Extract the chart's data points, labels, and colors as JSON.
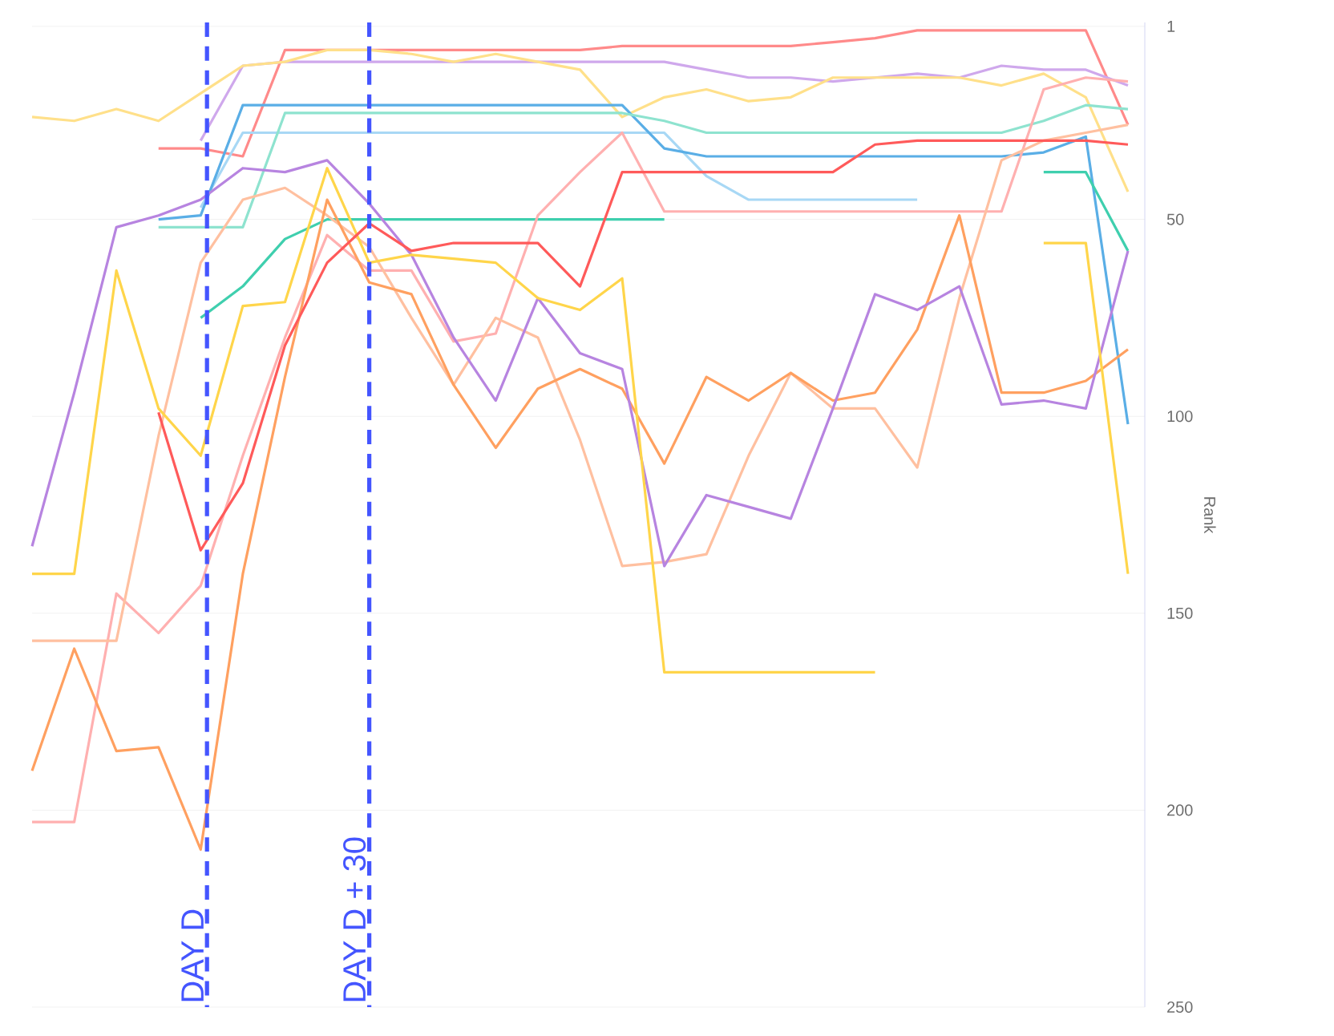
{
  "chart_data": {
    "type": "line",
    "ylabel": "Rank",
    "categories": [
      null,
      null,
      null,
      null,
      null,
      null,
      null,
      null,
      null,
      null,
      null,
      null,
      null,
      null,
      null,
      null,
      null,
      null,
      null,
      null,
      null,
      null,
      null,
      null,
      null,
      null,
      null
    ],
    "ylim": [
      250,
      0
    ],
    "yticks": [
      1,
      50,
      100,
      150,
      200,
      250
    ],
    "grid": "y",
    "tick_labels": "y",
    "marker": "none",
    "line_style": "solid",
    "series": [
      {
        "color": "#ff8a8a",
        "values": [
          null,
          null,
          null,
          32,
          32,
          34,
          7,
          7,
          7,
          7,
          7,
          7,
          7,
          7,
          6,
          6,
          6,
          6,
          6,
          5,
          4,
          2,
          2,
          2,
          2,
          2,
          26
        ]
      },
      {
        "color": "#cfa8ec",
        "values": [
          null,
          null,
          null,
          null,
          30,
          11,
          10,
          10,
          10,
          10,
          10,
          10,
          10,
          10,
          10,
          10,
          12,
          14,
          14,
          15,
          14,
          13,
          14,
          11,
          12,
          12,
          16
        ]
      },
      {
        "color": "#ffe08a",
        "values": [
          24,
          25,
          22,
          25,
          18,
          11,
          10,
          7,
          7,
          8,
          10,
          8,
          10,
          12,
          24,
          19,
          17,
          20,
          19,
          14,
          14,
          14,
          14,
          16,
          13,
          19,
          43
        ]
      },
      {
        "color": "#a8d8f5",
        "values": [
          null,
          null,
          null,
          null,
          47,
          28,
          28,
          28,
          28,
          28,
          28,
          28,
          28,
          28,
          28,
          28,
          39,
          45,
          45,
          45,
          45,
          45,
          null,
          null,
          null,
          null,
          null
        ]
      },
      {
        "color": "#5aaee6",
        "values": [
          null,
          null,
          null,
          50,
          49,
          21,
          21,
          21,
          21,
          21,
          21,
          21,
          21,
          21,
          21,
          32,
          34,
          34,
          34,
          34,
          34,
          34,
          34,
          34,
          33,
          29,
          102
        ]
      },
      {
        "color": "#8ee3cf",
        "values": [
          null,
          null,
          null,
          52,
          52,
          52,
          23,
          23,
          23,
          23,
          23,
          23,
          23,
          23,
          23,
          25,
          28,
          28,
          28,
          28,
          28,
          28,
          28,
          28,
          25,
          21,
          22
        ]
      },
      {
        "color": "#3fcfae",
        "values": [
          null,
          null,
          null,
          null,
          75,
          67,
          55,
          50,
          50,
          50,
          50,
          50,
          50,
          50,
          50,
          50,
          null,
          null,
          null,
          null,
          null,
          null,
          null,
          null,
          38,
          38,
          58
        ]
      },
      {
        "color": "#ffb0b0",
        "values": [
          203,
          203,
          145,
          155,
          143,
          110,
          80,
          54,
          63,
          63,
          81,
          79,
          49,
          38,
          28,
          48,
          48,
          48,
          48,
          48,
          48,
          48,
          48,
          48,
          17,
          14,
          15
        ]
      },
      {
        "color": "#ffc0a0",
        "values": [
          157,
          157,
          157,
          105,
          61,
          45,
          42,
          49,
          57,
          75,
          92,
          75,
          80,
          106,
          138,
          137,
          135,
          110,
          89,
          98,
          98,
          113,
          70,
          35,
          30,
          28,
          26
        ]
      },
      {
        "color": "#ffa060",
        "values": [
          190,
          159,
          185,
          184,
          210,
          140,
          90,
          45,
          66,
          69,
          92,
          108,
          93,
          88,
          93,
          112,
          90,
          96,
          89,
          96,
          94,
          78,
          49,
          94,
          94,
          91,
          83
        ]
      },
      {
        "color": "#b784e0",
        "values": [
          133,
          94,
          52,
          49,
          45,
          37,
          38,
          35,
          46,
          59,
          80,
          96,
          70,
          84,
          88,
          138,
          120,
          123,
          126,
          98,
          69,
          73,
          67,
          97,
          96,
          98,
          58
        ]
      },
      {
        "color": "#ffd54a",
        "values": [
          140,
          140,
          63,
          98,
          110,
          72,
          71,
          37,
          61,
          59,
          60,
          61,
          70,
          73,
          65,
          165,
          165,
          165,
          165,
          165,
          165,
          null,
          null,
          null,
          56,
          56,
          140
        ]
      },
      {
        "color": "#ff5a5a",
        "values": [
          null,
          null,
          null,
          99,
          134,
          117,
          82,
          61,
          51,
          58,
          56,
          56,
          56,
          67,
          38,
          38,
          38,
          38,
          38,
          38,
          31,
          30,
          30,
          30,
          30,
          30,
          31
        ]
      }
    ],
    "annotations": [
      "DAY D",
      "DAY D + 30"
    ]
  }
}
